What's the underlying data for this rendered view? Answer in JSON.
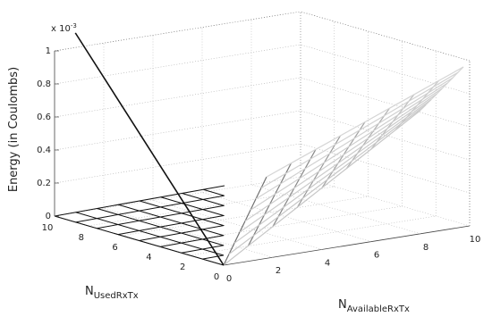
{
  "chart_data": {
    "type": "surface",
    "title": "",
    "zlabel": "Energy (in Coulombs)",
    "xlabel_main": "N",
    "xlabel_sub": "AvailableRxTx",
    "ylabel_main": "N",
    "ylabel_sub": "UsedRxTx",
    "z_exponent_label": "x 10",
    "z_exponent_power": "-3",
    "x_ticks": [
      {
        "value": 0,
        "label": "0"
      },
      {
        "value": 2,
        "label": "2"
      },
      {
        "value": 4,
        "label": "4"
      },
      {
        "value": 6,
        "label": "6"
      },
      {
        "value": 8,
        "label": "8"
      },
      {
        "value": 10,
        "label": "10"
      }
    ],
    "y_ticks": [
      {
        "value": 0,
        "label": "0"
      },
      {
        "value": 2,
        "label": "2"
      },
      {
        "value": 4,
        "label": "4"
      },
      {
        "value": 6,
        "label": "6"
      },
      {
        "value": 8,
        "label": "8"
      },
      {
        "value": 10,
        "label": "10"
      }
    ],
    "z_ticks": [
      {
        "value": 0,
        "label": "0"
      },
      {
        "value": 0.2,
        "label": "0.2"
      },
      {
        "value": 0.4,
        "label": "0.4"
      },
      {
        "value": 0.6,
        "label": "0.6"
      },
      {
        "value": 0.8,
        "label": "0.8"
      },
      {
        "value": 1,
        "label": "1"
      }
    ],
    "xlim": [
      0,
      10
    ],
    "ylim": [
      0,
      10
    ],
    "zlim": [
      0,
      1
    ],
    "grid": true,
    "surfaces": [
      {
        "region": "used",
        "x_grid": [
          0,
          0.01
        ],
        "y_grid": [
          0,
          1.25,
          2.5,
          3.75,
          5,
          6.25,
          7.5,
          8.75,
          10
        ],
        "z_values": [
          0,
          0,
          0,
          0,
          0,
          0,
          0,
          0,
          0
        ]
      },
      {
        "region": "available",
        "x_grid": [
          0,
          1.25,
          2.5,
          3.75,
          5,
          6.25,
          7.5,
          8.75,
          10
        ],
        "y_grid": [
          0,
          1.25,
          2.5,
          3.75,
          5,
          6.25,
          7.5,
          8.75,
          10
        ],
        "z_values": [
          [
            0,
            0.05,
            0.1,
            0.15,
            0.2,
            0.25,
            0.3,
            0.35,
            0.4
          ],
          [
            0.11,
            0.155,
            0.2,
            0.245,
            0.29,
            0.335,
            0.38,
            0.425,
            0.47
          ],
          [
            0.22,
            0.26,
            0.3,
            0.34,
            0.38,
            0.42,
            0.46,
            0.5,
            0.54
          ],
          [
            0.33,
            0.365,
            0.4,
            0.435,
            0.47,
            0.505,
            0.54,
            0.575,
            0.61
          ],
          [
            0.44,
            0.47,
            0.5,
            0.53,
            0.56,
            0.59,
            0.62,
            0.65,
            0.68
          ],
          [
            0.55,
            0.575,
            0.6,
            0.625,
            0.65,
            0.675,
            0.7,
            0.725,
            0.75
          ],
          [
            0.66,
            0.68,
            0.7,
            0.72,
            0.74,
            0.76,
            0.78,
            0.8,
            0.82
          ],
          [
            0.77,
            0.785,
            0.8,
            0.815,
            0.83,
            0.845,
            0.86,
            0.875,
            0.89
          ],
          [
            0.88,
            0.89,
            0.9,
            0.91,
            0.92,
            0.93,
            0.94,
            0.95,
            0.96
          ]
        ]
      }
    ]
  }
}
